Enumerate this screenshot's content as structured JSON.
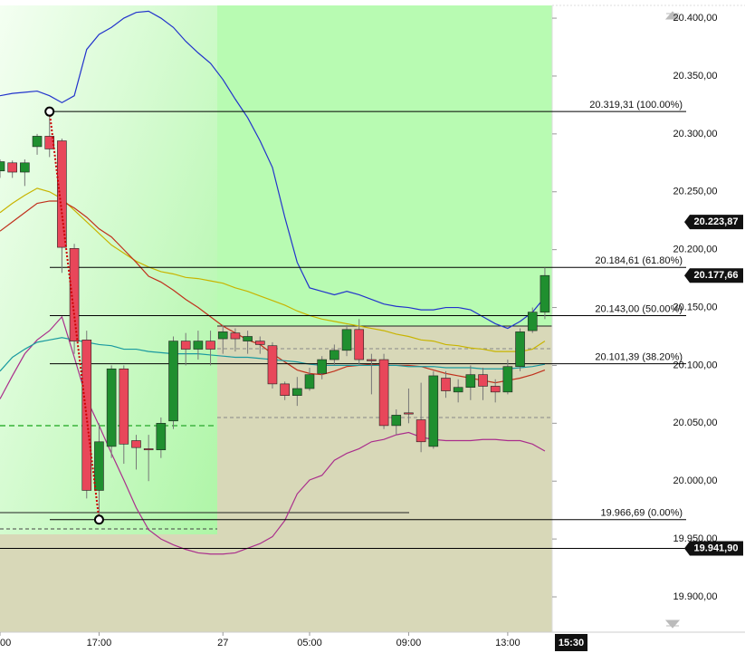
{
  "chart_data": {
    "type": "candlestick",
    "categories": [
      "00",
      null,
      null,
      null,
      null,
      null,
      null,
      null,
      "17:00",
      null,
      null,
      null,
      null,
      null,
      null,
      null,
      null,
      null,
      "27",
      null,
      null,
      null,
      null,
      null,
      null,
      "05:00",
      null,
      null,
      null,
      null,
      null,
      null,
      null,
      "09:00",
      null,
      null,
      null,
      null,
      null,
      null,
      null,
      "13:00",
      null,
      null,
      null
    ],
    "open": [
      20268,
      20275,
      20267,
      20289,
      20298,
      20294,
      20201,
      20122,
      19992,
      20030,
      20097,
      20035,
      20028,
      20027,
      20052,
      20121,
      20114,
      20121,
      20123,
      20128,
      20121,
      20121,
      20117,
      20084,
      20074,
      20080,
      20093,
      20105,
      20113,
      20131,
      20105,
      20105,
      20048,
      20059,
      20053,
      20030,
      20089,
      20077,
      20081,
      20092,
      20082,
      20077,
      20099,
      20130,
      20146
    ],
    "high": [
      20278,
      20277,
      20278,
      20300,
      20319.31,
      20296,
      20205,
      20130,
      20050,
      20100,
      20100,
      20040,
      20040,
      20055,
      20125,
      20128,
      20130,
      20130,
      20135,
      20132,
      20130,
      20125,
      20120,
      20086,
      20090,
      20098,
      20108,
      20118,
      20135,
      20140,
      20110,
      20110,
      20062,
      20080,
      20085,
      20095,
      20095,
      20088,
      20100,
      20098,
      20088,
      20105,
      20132,
      20150,
      20184.61
    ],
    "low": [
      20262,
      20262,
      20255,
      20282,
      20280,
      20180,
      20110,
      19985,
      19966.69,
      20020,
      20015,
      20010,
      20000,
      20020,
      20045,
      20100,
      20105,
      20100,
      20110,
      20112,
      20110,
      20110,
      20080,
      20070,
      20065,
      20078,
      20088,
      20100,
      20108,
      20100,
      20075,
      20045,
      20040,
      20050,
      20025,
      20028,
      20072,
      20068,
      20070,
      20070,
      20068,
      20075,
      20095,
      20128,
      20140
    ],
    "close": [
      20276,
      20267,
      20275,
      20298,
      20287,
      20202,
      20121,
      19992,
      20034,
      20097,
      20032,
      20029,
      20027,
      20050,
      20121,
      20114,
      20121,
      20114,
      20129,
      20123,
      20125,
      20118,
      20084,
      20074,
      20080,
      20092,
      20105,
      20113,
      20131,
      20105,
      20104,
      20048,
      20057,
      20058,
      20034,
      20091,
      20078,
      20081,
      20092,
      20082,
      20077,
      20099,
      20129,
      20146,
      20177.66
    ],
    "up_color": "#1f8f2f",
    "down_color": "#e8475a",
    "series": [
      {
        "color": "#2233cc",
        "values": [
          20333,
          20335,
          20336,
          20337,
          20333,
          20327,
          20333,
          20373,
          20386,
          20392,
          20400,
          20405,
          20406,
          20400,
          20392,
          20380,
          20370,
          20361,
          20347,
          20330,
          20314,
          20294,
          20271,
          20228,
          20189,
          20167,
          20164,
          20161,
          20164,
          20161,
          20157,
          20153,
          20151,
          20150,
          20148,
          20148,
          20150,
          20150,
          20148,
          20142,
          20136,
          20132,
          20138,
          20146,
          20159
        ]
      },
      {
        "color": "#aa2e8c",
        "values": [
          20071,
          20091,
          20110,
          20122,
          20130,
          20142,
          20107,
          20071,
          20048,
          20024,
          20001,
          19977,
          19958,
          19950,
          19945,
          19941,
          19938,
          19937,
          19937,
          19938,
          19942,
          19946,
          19952,
          19966,
          19989,
          20001,
          20005,
          20018,
          20024,
          20028,
          20034,
          20036,
          20040,
          20042,
          20038,
          20036,
          20035,
          20035,
          20035,
          20036,
          20036,
          20035,
          20035,
          20032,
          20026
        ]
      },
      {
        "color": "#c8b400",
        "values": [
          20232,
          20240,
          20247,
          20253,
          20250,
          20244,
          20234,
          20224,
          20214,
          20204,
          20197,
          20190,
          20185,
          20181,
          20179,
          20176,
          20175,
          20173,
          20171,
          20167,
          20164,
          20160,
          20156,
          20152,
          20147,
          20143,
          20140,
          20138,
          20136,
          20134,
          20132,
          20130,
          20127,
          20125,
          20122,
          20121,
          20118,
          20117,
          20115,
          20114,
          20112,
          20112,
          20112,
          20114,
          20121
        ]
      },
      {
        "color": "#c0301c",
        "values": [
          20216,
          20224,
          20232,
          20240,
          20242,
          20242,
          20236,
          20228,
          20218,
          20211,
          20200,
          20189,
          20177,
          20172,
          20165,
          20157,
          20150,
          20142,
          20134,
          20128,
          20122,
          20118,
          20110,
          20103,
          20096,
          20093,
          20092,
          20095,
          20099,
          20100,
          20101,
          20100,
          20100,
          20100,
          20099,
          20096,
          20093,
          20091,
          20089,
          20087,
          20085,
          20087,
          20089,
          20092,
          20096
        ]
      },
      {
        "color": "#1a9aa0",
        "values": [
          20095,
          20107,
          20114,
          20120,
          20122,
          20124,
          20122,
          20120,
          20118,
          20117,
          20114,
          20114,
          20112,
          20111,
          20110,
          20110,
          20110,
          20109,
          20108,
          20107,
          20107,
          20106,
          20105,
          20104,
          20103,
          20101,
          20100,
          20100,
          20100,
          20100,
          20100,
          20100,
          20100,
          20099,
          20099,
          20099,
          20098,
          20098,
          20098,
          20097,
          20097,
          20097,
          20098,
          20099,
          20101
        ]
      }
    ],
    "fib_levels": [
      {
        "value": 20319.31,
        "label": "20.319,31 (100.00%)"
      },
      {
        "value": 20184.61,
        "label": "20.184,61 (61.80%)"
      },
      {
        "value": 20143.0,
        "label": "20.143,00 (50.00%)"
      },
      {
        "value": 20101.39,
        "label": "20.101,39 (38.20%)"
      },
      {
        "value": 19966.69,
        "label": "19.966,69 (0.00%)"
      }
    ],
    "price_markers": [
      {
        "value": 20223.87,
        "label": "20.223,87"
      },
      {
        "value": 20177.66,
        "label": "20.177,66"
      },
      {
        "value": 19941.9,
        "label": "19.941,90"
      }
    ],
    "current_time": "15:30",
    "ylim": [
      19869.5,
      20411
    ],
    "yticks": [
      {
        "value": 20400,
        "label": "20.400,00"
      },
      {
        "value": 20350,
        "label": "20.350,00"
      },
      {
        "value": 20300,
        "label": "20.300,00"
      },
      {
        "value": 20250,
        "label": "20.250,00"
      },
      {
        "value": 20200,
        "label": "20.200,00"
      },
      {
        "value": 20150,
        "label": "20.150,00"
      },
      {
        "value": 20100,
        "label": "20.100,00"
      },
      {
        "value": 20050,
        "label": "20.050,00"
      },
      {
        "value": 20000,
        "label": "20.000,00"
      },
      {
        "value": 19950,
        "label": "19.950,00"
      },
      {
        "value": 19900,
        "label": "19.900,00"
      }
    ]
  }
}
